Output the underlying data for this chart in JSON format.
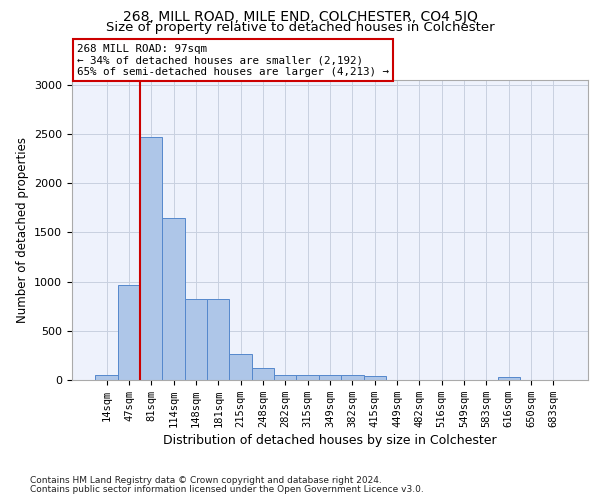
{
  "title": "268, MILL ROAD, MILE END, COLCHESTER, CO4 5JQ",
  "subtitle": "Size of property relative to detached houses in Colchester",
  "xlabel": "Distribution of detached houses by size in Colchester",
  "ylabel": "Number of detached properties",
  "footnote1": "Contains HM Land Registry data © Crown copyright and database right 2024.",
  "footnote2": "Contains public sector information licensed under the Open Government Licence v3.0.",
  "annotation_title": "268 MILL ROAD: 97sqm",
  "annotation_line2": "← 34% of detached houses are smaller (2,192)",
  "annotation_line3": "65% of semi-detached houses are larger (4,213) →",
  "bar_labels": [
    "14sqm",
    "47sqm",
    "81sqm",
    "114sqm",
    "148sqm",
    "181sqm",
    "215sqm",
    "248sqm",
    "282sqm",
    "315sqm",
    "349sqm",
    "382sqm",
    "415sqm",
    "449sqm",
    "482sqm",
    "516sqm",
    "549sqm",
    "583sqm",
    "616sqm",
    "650sqm",
    "683sqm"
  ],
  "bar_values": [
    55,
    970,
    2470,
    1650,
    820,
    820,
    260,
    125,
    55,
    55,
    55,
    55,
    40,
    0,
    0,
    0,
    0,
    0,
    30,
    0,
    0
  ],
  "bar_color": "#aec6e8",
  "bar_edge_color": "#5588cc",
  "vline_color": "#cc0000",
  "vline_x_idx": 2,
  "annotation_box_color": "#cc0000",
  "ylim": [
    0,
    3050
  ],
  "yticks": [
    0,
    500,
    1000,
    1500,
    2000,
    2500,
    3000
  ],
  "grid_color": "#c8d0e0",
  "background_color": "#eef2fc",
  "title_fontsize": 10,
  "subtitle_fontsize": 9.5,
  "xlabel_fontsize": 9,
  "ylabel_fontsize": 8.5,
  "tick_fontsize": 7.5,
  "footnote_fontsize": 6.5
}
